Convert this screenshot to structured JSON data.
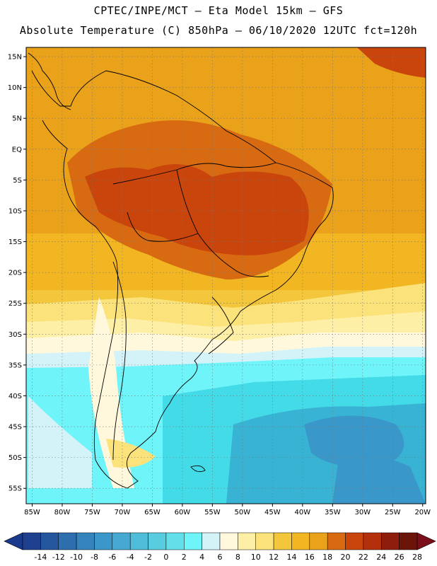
{
  "header": {
    "line1": "CPTEC/INPE/MCT –  Eta Model 15km – GFS",
    "line2": "Absolute Temperature (C) 850hPa – 06/10/2020 12UTC fct=120h"
  },
  "map": {
    "lon_range": [
      -86,
      -19.5
    ],
    "lat_range": [
      -57.5,
      16.5
    ],
    "lat_ticks": [
      {
        "value": 15,
        "label": "15N"
      },
      {
        "value": 10,
        "label": "10N"
      },
      {
        "value": 5,
        "label": "5N"
      },
      {
        "value": 0,
        "label": "EQ"
      },
      {
        "value": -5,
        "label": "5S"
      },
      {
        "value": -10,
        "label": "10S"
      },
      {
        "value": -15,
        "label": "15S"
      },
      {
        "value": -20,
        "label": "20S"
      },
      {
        "value": -25,
        "label": "25S"
      },
      {
        "value": -30,
        "label": "30S"
      },
      {
        "value": -35,
        "label": "35S"
      },
      {
        "value": -40,
        "label": "40S"
      },
      {
        "value": -45,
        "label": "45S"
      },
      {
        "value": -50,
        "label": "50S"
      },
      {
        "value": -55,
        "label": "55S"
      }
    ],
    "lon_ticks": [
      {
        "value": -85,
        "label": "85W"
      },
      {
        "value": -80,
        "label": "80W"
      },
      {
        "value": -75,
        "label": "75W"
      },
      {
        "value": -70,
        "label": "70W"
      },
      {
        "value": -65,
        "label": "65W"
      },
      {
        "value": -60,
        "label": "60W"
      },
      {
        "value": -55,
        "label": "55W"
      },
      {
        "value": -50,
        "label": "50W"
      },
      {
        "value": -45,
        "label": "45W"
      },
      {
        "value": -40,
        "label": "40W"
      },
      {
        "value": -35,
        "label": "35W"
      },
      {
        "value": -30,
        "label": "30W"
      },
      {
        "value": -25,
        "label": "25W"
      },
      {
        "value": -20,
        "label": "20W"
      }
    ],
    "grid_lines": "dotted",
    "field_colors": {
      "t_gt_24": "#c9450c",
      "t_22_24": "#d86a12",
      "t_18_22": "#e9a21a",
      "t_16_18": "#f2b623",
      "t_14_16": "#f3c63b",
      "t_12_14": "#fbe27a",
      "t_8_12": "#fdf0a6",
      "t_6_8": "#fff8dc",
      "t_4_6": "#d3f3f8",
      "t_2_4": "#6ff4fa",
      "t_0_2": "#44dbe8",
      "t_m2_0": "#39b3d4",
      "t_m4_m2": "#3a97c9"
    },
    "coastline_color": "#000000"
  },
  "colorbar": {
    "labels": [
      "-14",
      "-12",
      "-10",
      "-8",
      "-6",
      "-4",
      "-2",
      "0",
      "2",
      "4",
      "6",
      "8",
      "10",
      "12",
      "14",
      "16",
      "18",
      "20",
      "22",
      "24",
      "26",
      "28"
    ],
    "colors": [
      "#1f3f8f",
      "#25579f",
      "#2d6eae",
      "#3583bd",
      "#3b97c9",
      "#45a9d1",
      "#4fbcd9",
      "#58cde0",
      "#62dfe8",
      "#6ff4fa",
      "#d3f3f8",
      "#fff8dc",
      "#fdf0a6",
      "#fbe27a",
      "#f3c63b",
      "#f2b623",
      "#e9a21a",
      "#d86a12",
      "#c9450c",
      "#b3300a",
      "#8f1d0b",
      "#6b1409"
    ],
    "low_arrow_color": "#1a3a8c",
    "high_arrow_color": "#7a0f1a"
  }
}
